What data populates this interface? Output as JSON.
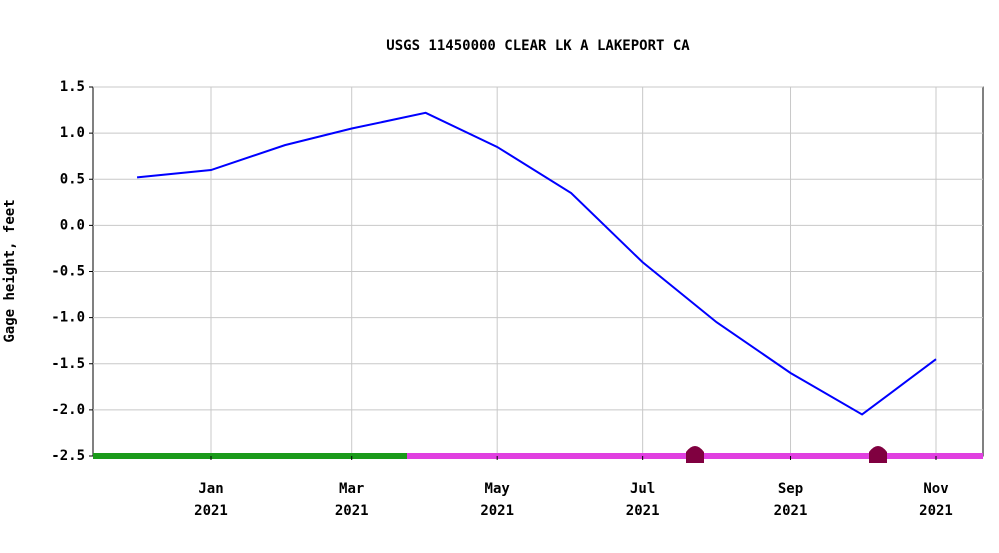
{
  "chart_data": {
    "type": "line",
    "title": "USGS 11450000 CLEAR LK A LAKEPORT CA",
    "y_label": "Gage height, feet",
    "x": [
      "2020-12",
      "2021-01",
      "2021-02",
      "2021-03",
      "2021-04",
      "2021-05",
      "2021-06",
      "2021-07",
      "2021-08",
      "2021-09",
      "2021-10",
      "2021-11"
    ],
    "series": [
      {
        "color": "#0000ff",
        "values": [
          0.52,
          0.6,
          0.87,
          1.05,
          1.22,
          0.85,
          0.35,
          -0.4,
          -1.05,
          -1.6,
          -2.05,
          -1.45
        ]
      }
    ],
    "ylim": [
      -2.5,
      1.5
    ],
    "yticks": [
      -2.5,
      {
        "value": -2,
        "label": "-2.0"
      },
      -1.5,
      {
        "value": -1,
        "label": "-1.0"
      },
      -0.5,
      {
        "value": 0,
        "label": "0.0"
      },
      0.5,
      {
        "value": 1,
        "label": "1.0"
      },
      1.5
    ],
    "xticks": [
      {
        "value": "2021-01",
        "label": "Jan 2021"
      },
      {
        "value": "2021-03",
        "label": "Mar 2021"
      },
      {
        "value": "2021-05",
        "label": "May 2021"
      },
      {
        "value": "2021-07",
        "label": "Jul 2021"
      },
      {
        "value": "2021-09",
        "label": "Sep 2021"
      },
      {
        "value": "2021-11",
        "label": "Nov 2021"
      }
    ],
    "grid": true
  }
}
